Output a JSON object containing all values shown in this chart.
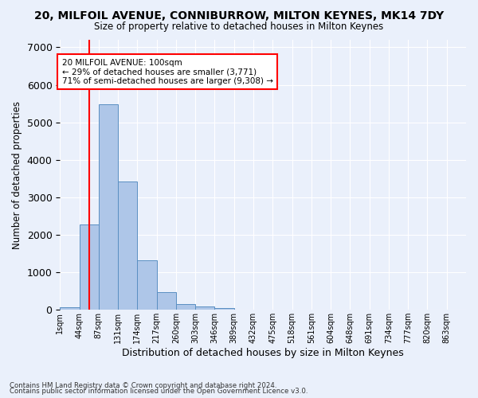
{
  "title": "20, MILFOIL AVENUE, CONNIBURROW, MILTON KEYNES, MK14 7DY",
  "subtitle": "Size of property relative to detached houses in Milton Keynes",
  "xlabel": "Distribution of detached houses by size in Milton Keynes",
  "ylabel": "Number of detached properties",
  "bin_labels": [
    "1sqm",
    "44sqm",
    "87sqm",
    "131sqm",
    "174sqm",
    "217sqm",
    "260sqm",
    "303sqm",
    "346sqm",
    "389sqm",
    "432sqm",
    "475sqm",
    "518sqm",
    "561sqm",
    "604sqm",
    "648sqm",
    "691sqm",
    "734sqm",
    "777sqm",
    "820sqm",
    "863sqm"
  ],
  "bar_heights": [
    75,
    2270,
    5470,
    3430,
    1310,
    460,
    155,
    90,
    55,
    0,
    0,
    0,
    0,
    0,
    0,
    0,
    0,
    0,
    0,
    0
  ],
  "bar_color": "#aec6e8",
  "bar_edge_color": "#5a8fc2",
  "vline_position": 1.5,
  "vline_color": "red",
  "annotation_text": "20 MILFOIL AVENUE: 100sqm\n← 29% of detached houses are smaller (3,771)\n71% of semi-detached houses are larger (9,308) →",
  "annotation_box_color": "white",
  "annotation_box_edge": "red",
  "ylim": [
    0,
    7200
  ],
  "yticks": [
    0,
    1000,
    2000,
    3000,
    4000,
    5000,
    6000,
    7000
  ],
  "footer1": "Contains HM Land Registry data © Crown copyright and database right 2024.",
  "footer2": "Contains public sector information licensed under the Open Government Licence v3.0.",
  "bg_color": "#eaf0fb",
  "plot_bg_color": "#eaf0fb",
  "grid_color": "white"
}
